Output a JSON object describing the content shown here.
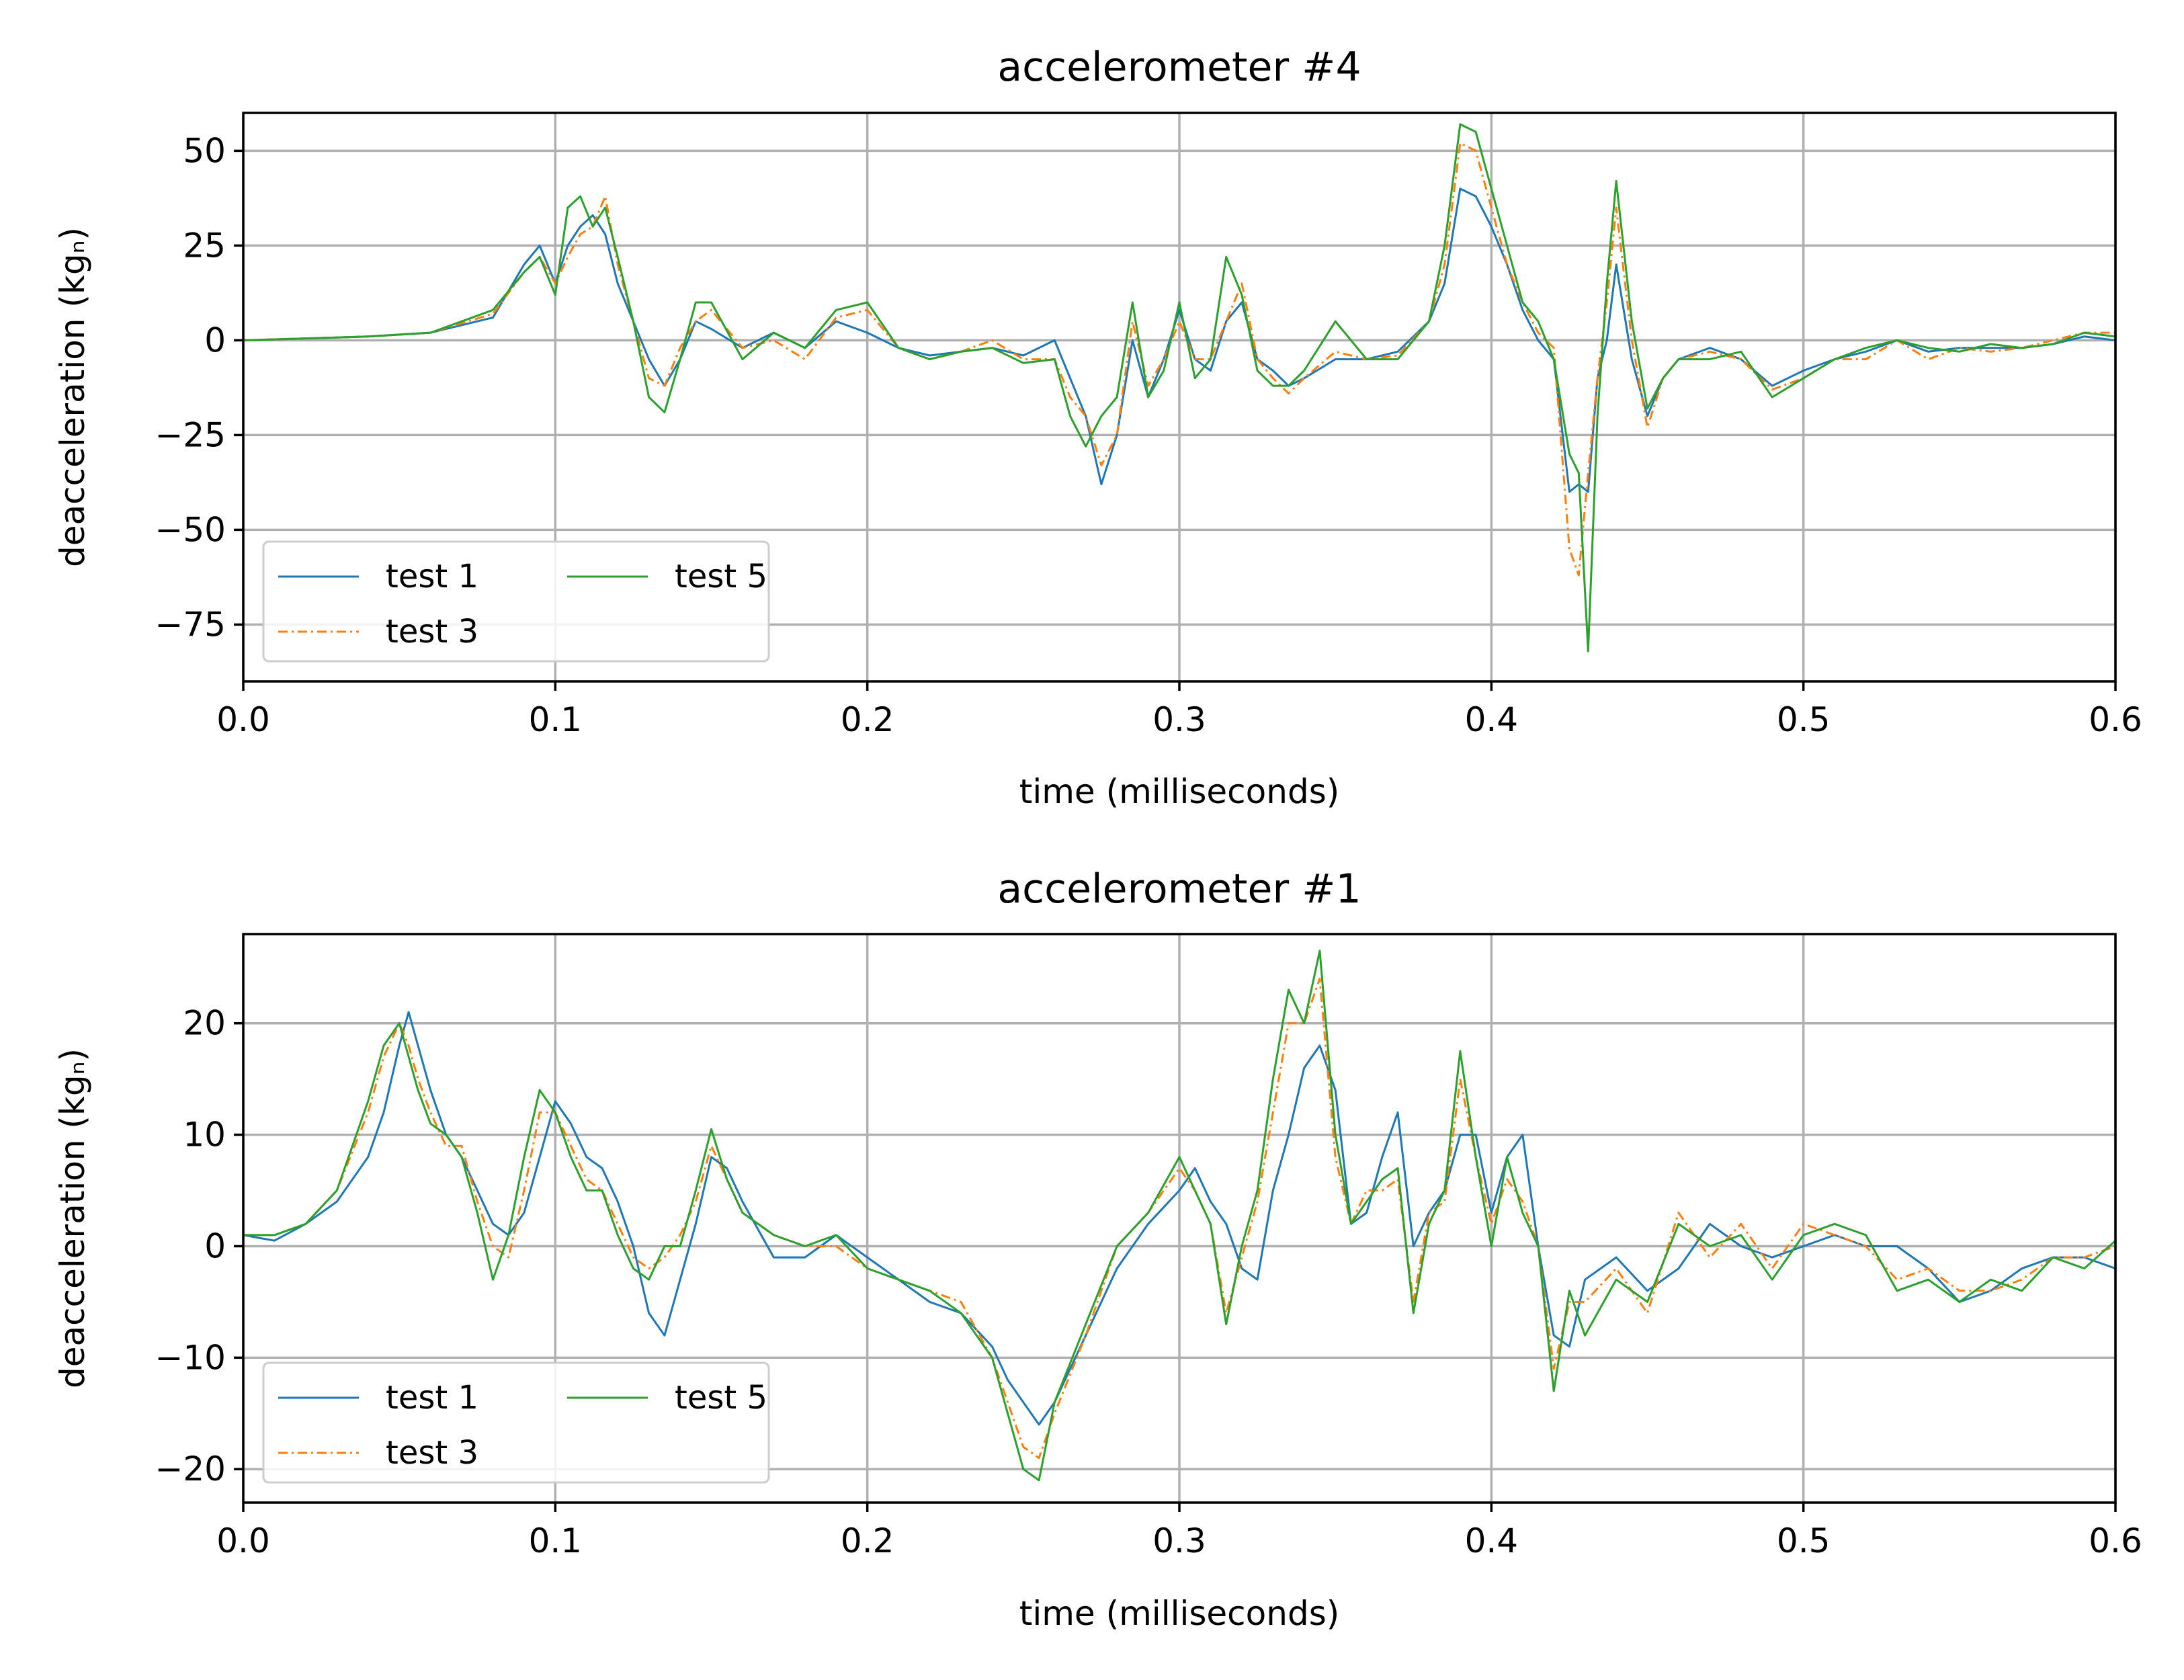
{
  "chart_data": [
    {
      "type": "line",
      "title": "accelerometer #4",
      "xlabel": "time (milliseconds)",
      "ylabel": "deacceleration (kgₙ)",
      "xlim": [
        0,
        0.6
      ],
      "ylim": [
        -90,
        60
      ],
      "xticks": [
        "0.0",
        "0.1",
        "0.2",
        "0.3",
        "0.4",
        "0.5",
        "0.6"
      ],
      "yticks": [
        "−75",
        "−50",
        "−25",
        "0",
        "25",
        "50"
      ],
      "grid": true,
      "legend_position": "lower-left",
      "series": [
        {
          "name": "test 1",
          "color": "#1f77b4",
          "style": "solid",
          "x": [
            0,
            0.04,
            0.06,
            0.08,
            0.09,
            0.095,
            0.1,
            0.104,
            0.108,
            0.112,
            0.116,
            0.12,
            0.125,
            0.13,
            0.135,
            0.14,
            0.145,
            0.15,
            0.16,
            0.17,
            0.18,
            0.19,
            0.2,
            0.21,
            0.22,
            0.23,
            0.24,
            0.25,
            0.26,
            0.265,
            0.27,
            0.275,
            0.28,
            0.285,
            0.29,
            0.295,
            0.3,
            0.305,
            0.31,
            0.315,
            0.32,
            0.325,
            0.33,
            0.335,
            0.34,
            0.35,
            0.36,
            0.37,
            0.38,
            0.385,
            0.39,
            0.395,
            0.4,
            0.405,
            0.41,
            0.415,
            0.42,
            0.425,
            0.428,
            0.431,
            0.434,
            0.437,
            0.44,
            0.445,
            0.45,
            0.455,
            0.46,
            0.47,
            0.48,
            0.49,
            0.5,
            0.51,
            0.52,
            0.53,
            0.54,
            0.55,
            0.56,
            0.57,
            0.58,
            0.59,
            0.6
          ],
          "y": [
            0,
            1,
            2,
            6,
            20,
            25,
            15,
            25,
            30,
            33,
            28,
            15,
            5,
            -5,
            -12,
            -5,
            5,
            3,
            -2,
            2,
            -2,
            5,
            2,
            -2,
            -4,
            -3,
            -2,
            -4,
            0,
            -10,
            -20,
            -38,
            -25,
            0,
            -15,
            -5,
            8,
            -5,
            -8,
            5,
            10,
            -5,
            -8,
            -12,
            -10,
            -5,
            -5,
            -3,
            5,
            15,
            40,
            38,
            30,
            20,
            8,
            0,
            -5,
            -40,
            -38,
            -40,
            -10,
            0,
            20,
            -5,
            -20,
            -10,
            -5,
            -2,
            -5,
            -12,
            -8,
            -5,
            -3,
            0,
            -3,
            -2,
            -2,
            -2,
            -1,
            1,
            0
          ]
        },
        {
          "name": "test 3",
          "color": "#ff7f0e",
          "style": "dashdot",
          "x": [
            0,
            0.04,
            0.06,
            0.08,
            0.09,
            0.095,
            0.1,
            0.104,
            0.108,
            0.112,
            0.116,
            0.12,
            0.125,
            0.13,
            0.135,
            0.14,
            0.145,
            0.15,
            0.16,
            0.17,
            0.18,
            0.19,
            0.2,
            0.21,
            0.22,
            0.23,
            0.24,
            0.25,
            0.26,
            0.265,
            0.27,
            0.275,
            0.28,
            0.285,
            0.29,
            0.295,
            0.3,
            0.305,
            0.31,
            0.315,
            0.32,
            0.325,
            0.33,
            0.335,
            0.34,
            0.35,
            0.36,
            0.37,
            0.38,
            0.385,
            0.39,
            0.395,
            0.4,
            0.405,
            0.41,
            0.415,
            0.42,
            0.425,
            0.428,
            0.431,
            0.434,
            0.437,
            0.44,
            0.445,
            0.45,
            0.455,
            0.46,
            0.47,
            0.48,
            0.49,
            0.5,
            0.51,
            0.52,
            0.53,
            0.54,
            0.55,
            0.56,
            0.57,
            0.58,
            0.59,
            0.6
          ],
          "y": [
            0,
            1,
            2,
            7,
            18,
            22,
            15,
            22,
            28,
            30,
            38,
            20,
            5,
            -10,
            -12,
            -2,
            5,
            8,
            -2,
            0,
            -5,
            6,
            8,
            -2,
            -5,
            -3,
            0,
            -5,
            -5,
            -15,
            -20,
            -33,
            -25,
            5,
            -12,
            -5,
            5,
            -5,
            -5,
            5,
            15,
            -5,
            -10,
            -14,
            -10,
            -3,
            -5,
            -4,
            5,
            20,
            52,
            50,
            35,
            20,
            10,
            2,
            -2,
            -55,
            -62,
            -35,
            -10,
            10,
            35,
            0,
            -23,
            -10,
            -5,
            -3,
            -5,
            -13,
            -10,
            -5,
            -5,
            0,
            -5,
            -2,
            -3,
            -2,
            0,
            2,
            2
          ]
        },
        {
          "name": "test 5",
          "color": "#2ca02c",
          "style": "solid",
          "x": [
            0,
            0.04,
            0.06,
            0.08,
            0.09,
            0.095,
            0.1,
            0.104,
            0.108,
            0.112,
            0.116,
            0.12,
            0.125,
            0.13,
            0.135,
            0.14,
            0.145,
            0.15,
            0.16,
            0.17,
            0.18,
            0.19,
            0.2,
            0.21,
            0.22,
            0.23,
            0.24,
            0.25,
            0.26,
            0.265,
            0.27,
            0.275,
            0.28,
            0.285,
            0.29,
            0.295,
            0.3,
            0.305,
            0.31,
            0.315,
            0.32,
            0.325,
            0.33,
            0.335,
            0.34,
            0.35,
            0.36,
            0.37,
            0.38,
            0.385,
            0.39,
            0.395,
            0.4,
            0.405,
            0.41,
            0.415,
            0.42,
            0.425,
            0.428,
            0.431,
            0.434,
            0.437,
            0.44,
            0.445,
            0.45,
            0.455,
            0.46,
            0.47,
            0.48,
            0.49,
            0.5,
            0.51,
            0.52,
            0.53,
            0.54,
            0.55,
            0.56,
            0.57,
            0.58,
            0.59,
            0.6
          ],
          "y": [
            0,
            1,
            2,
            8,
            18,
            22,
            12,
            35,
            38,
            30,
            35,
            22,
            5,
            -15,
            -19,
            -5,
            10,
            10,
            -5,
            2,
            -2,
            8,
            10,
            -2,
            -5,
            -3,
            -2,
            -6,
            -5,
            -20,
            -28,
            -20,
            -15,
            10,
            -15,
            -8,
            10,
            -10,
            -5,
            22,
            12,
            -8,
            -12,
            -12,
            -8,
            5,
            -5,
            -5,
            5,
            25,
            57,
            55,
            40,
            25,
            10,
            5,
            -5,
            -30,
            -35,
            -82,
            -20,
            15,
            42,
            5,
            -18,
            -10,
            -5,
            -5,
            -3,
            -15,
            -10,
            -5,
            -2,
            0,
            -2,
            -3,
            -1,
            -2,
            -1,
            2,
            1
          ]
        }
      ]
    },
    {
      "type": "line",
      "title": "accelerometer #1",
      "xlabel": "time (milliseconds)",
      "ylabel": "deacceleration (kgₙ)",
      "xlim": [
        0,
        0.6
      ],
      "ylim": [
        -23,
        28
      ],
      "xticks": [
        "0.0",
        "0.1",
        "0.2",
        "0.3",
        "0.4",
        "0.5",
        "0.6"
      ],
      "yticks": [
        "−20",
        "−10",
        "0",
        "10",
        "20"
      ],
      "grid": true,
      "legend_position": "lower-left",
      "series": [
        {
          "name": "test 1",
          "color": "#1f77b4",
          "style": "solid",
          "x": [
            0,
            0.01,
            0.02,
            0.03,
            0.04,
            0.045,
            0.05,
            0.053,
            0.056,
            0.06,
            0.065,
            0.07,
            0.075,
            0.08,
            0.085,
            0.09,
            0.095,
            0.1,
            0.105,
            0.11,
            0.115,
            0.12,
            0.125,
            0.13,
            0.135,
            0.14,
            0.145,
            0.15,
            0.155,
            0.16,
            0.17,
            0.18,
            0.19,
            0.2,
            0.21,
            0.22,
            0.23,
            0.24,
            0.245,
            0.25,
            0.255,
            0.26,
            0.27,
            0.28,
            0.29,
            0.3,
            0.305,
            0.31,
            0.315,
            0.32,
            0.325,
            0.33,
            0.335,
            0.34,
            0.345,
            0.35,
            0.355,
            0.36,
            0.365,
            0.37,
            0.375,
            0.38,
            0.385,
            0.39,
            0.395,
            0.4,
            0.405,
            0.41,
            0.415,
            0.42,
            0.425,
            0.43,
            0.44,
            0.45,
            0.46,
            0.47,
            0.48,
            0.49,
            0.5,
            0.51,
            0.52,
            0.53,
            0.54,
            0.55,
            0.56,
            0.57,
            0.58,
            0.59,
            0.6
          ],
          "y": [
            1,
            0.5,
            2,
            4,
            8,
            12,
            18,
            21,
            18,
            14,
            10,
            8,
            5,
            2,
            1,
            3,
            8,
            13,
            11,
            8,
            7,
            4,
            0,
            -6,
            -8,
            -3,
            2,
            8,
            7,
            4,
            -1,
            -1,
            1,
            -1,
            -3,
            -5,
            -6,
            -9,
            -12,
            -14,
            -16,
            -14,
            -8,
            -2,
            2,
            5,
            7,
            4,
            2,
            -2,
            -3,
            5,
            10,
            16,
            18,
            14,
            2,
            3,
            8,
            12,
            0,
            3,
            5,
            10,
            10,
            3,
            8,
            10,
            0,
            -8,
            -9,
            -3,
            -1,
            -4,
            -2,
            2,
            0,
            -1,
            0,
            1,
            0,
            0,
            -2,
            -5,
            -4,
            -2,
            -1,
            -1,
            -2
          ]
        },
        {
          "name": "test 3",
          "color": "#ff7f0e",
          "style": "dashdot",
          "x": [
            0,
            0.01,
            0.02,
            0.03,
            0.04,
            0.045,
            0.05,
            0.053,
            0.056,
            0.06,
            0.065,
            0.07,
            0.075,
            0.08,
            0.085,
            0.09,
            0.095,
            0.1,
            0.105,
            0.11,
            0.115,
            0.12,
            0.125,
            0.13,
            0.135,
            0.14,
            0.145,
            0.15,
            0.155,
            0.16,
            0.17,
            0.18,
            0.19,
            0.2,
            0.21,
            0.22,
            0.23,
            0.24,
            0.245,
            0.25,
            0.255,
            0.26,
            0.27,
            0.28,
            0.29,
            0.3,
            0.305,
            0.31,
            0.315,
            0.32,
            0.325,
            0.33,
            0.335,
            0.34,
            0.345,
            0.35,
            0.355,
            0.36,
            0.365,
            0.37,
            0.375,
            0.38,
            0.385,
            0.39,
            0.395,
            0.4,
            0.405,
            0.41,
            0.415,
            0.42,
            0.425,
            0.43,
            0.44,
            0.45,
            0.46,
            0.47,
            0.48,
            0.49,
            0.5,
            0.51,
            0.52,
            0.53,
            0.54,
            0.55,
            0.56,
            0.57,
            0.58,
            0.59,
            0.6
          ],
          "y": [
            1,
            1,
            2,
            5,
            12,
            17,
            20,
            18,
            15,
            12,
            9,
            9,
            4,
            0,
            -1,
            5,
            12,
            12,
            9,
            6,
            5,
            2,
            -1,
            -2,
            -1,
            1,
            4,
            9,
            6,
            3,
            1,
            0,
            0,
            -2,
            -3,
            -4,
            -5,
            -10,
            -14,
            -18,
            -19,
            -15,
            -8,
            0,
            3,
            7,
            5,
            2,
            -6,
            -1,
            4,
            12,
            20,
            20,
            24,
            8,
            2,
            5,
            5,
            6,
            -5,
            3,
            4,
            15,
            8,
            2,
            6,
            4,
            0,
            -11,
            -5,
            -5,
            -2,
            -6,
            3,
            -1,
            2,
            -2,
            2,
            1,
            0,
            -3,
            -2,
            -4,
            -4,
            -3,
            -1,
            -1,
            0
          ]
        },
        {
          "name": "test 5",
          "color": "#2ca02c",
          "style": "solid",
          "x": [
            0,
            0.01,
            0.02,
            0.03,
            0.04,
            0.045,
            0.05,
            0.053,
            0.056,
            0.06,
            0.065,
            0.07,
            0.075,
            0.08,
            0.085,
            0.09,
            0.095,
            0.1,
            0.105,
            0.11,
            0.115,
            0.12,
            0.125,
            0.13,
            0.135,
            0.14,
            0.145,
            0.15,
            0.155,
            0.16,
            0.17,
            0.18,
            0.19,
            0.2,
            0.21,
            0.22,
            0.23,
            0.24,
            0.245,
            0.25,
            0.255,
            0.26,
            0.27,
            0.28,
            0.29,
            0.3,
            0.305,
            0.31,
            0.315,
            0.32,
            0.325,
            0.33,
            0.335,
            0.34,
            0.345,
            0.35,
            0.355,
            0.36,
            0.365,
            0.37,
            0.375,
            0.38,
            0.385,
            0.39,
            0.395,
            0.4,
            0.405,
            0.41,
            0.415,
            0.42,
            0.425,
            0.43,
            0.44,
            0.45,
            0.46,
            0.47,
            0.48,
            0.49,
            0.5,
            0.51,
            0.52,
            0.53,
            0.54,
            0.55,
            0.56,
            0.57,
            0.58,
            0.59,
            0.6
          ],
          "y": [
            1,
            1,
            2,
            5,
            13,
            18,
            20,
            17,
            14,
            11,
            10,
            8,
            3,
            -3,
            1,
            8,
            14,
            12,
            8,
            5,
            5,
            1,
            -2,
            -3,
            0,
            0,
            5,
            10.5,
            6,
            3,
            1,
            0,
            1,
            -2,
            -3,
            -4,
            -6,
            -10,
            -15,
            -20,
            -21,
            -14,
            -7,
            0,
            3,
            8,
            5,
            2,
            -7,
            0,
            5,
            15,
            23,
            20,
            26.5,
            10,
            2,
            4,
            6,
            7,
            -6,
            2,
            5,
            17.5,
            8,
            0,
            8,
            3,
            0,
            -13,
            -4,
            -8,
            -3,
            -5,
            2,
            0,
            1,
            -3,
            1,
            2,
            1,
            -4,
            -3,
            -5,
            -3,
            -4,
            -1,
            -2,
            0.5
          ]
        }
      ]
    }
  ]
}
